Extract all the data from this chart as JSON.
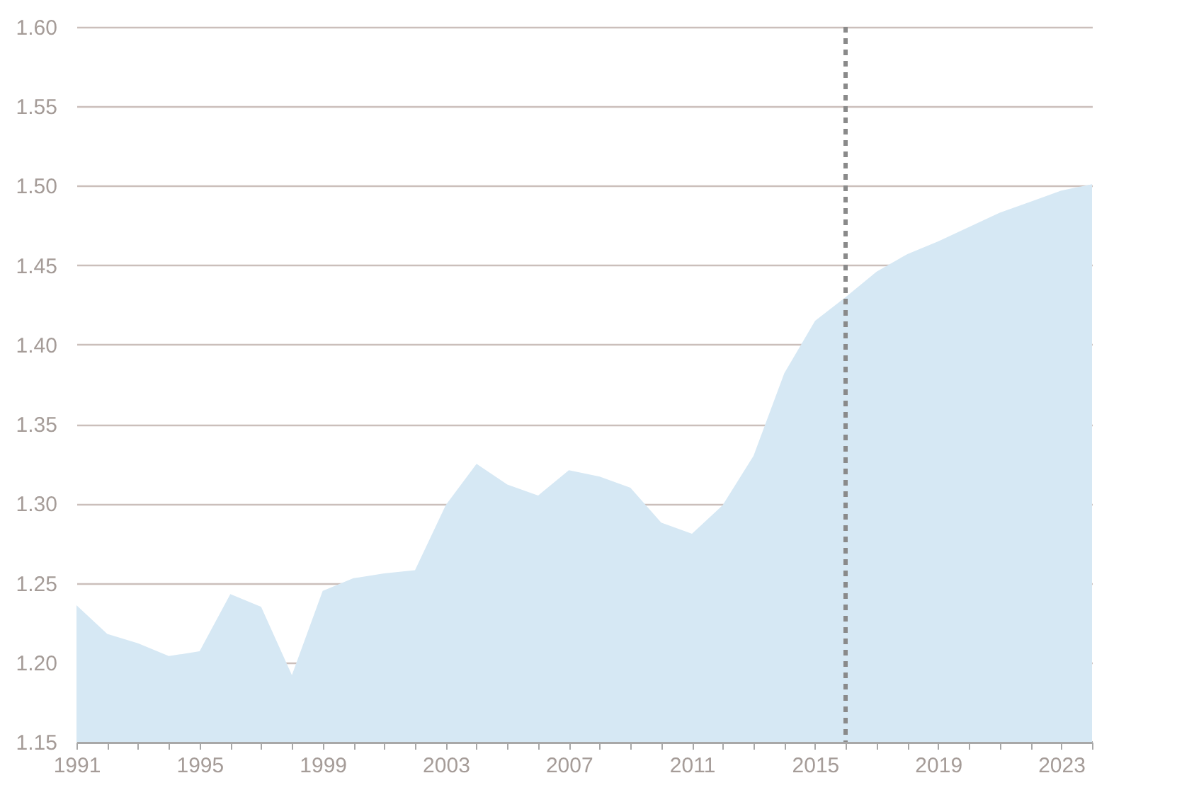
{
  "chart_data": {
    "type": "area",
    "x": [
      1991,
      1992,
      1993,
      1994,
      1995,
      1996,
      1997,
      1998,
      1999,
      2000,
      2001,
      2002,
      2003,
      2004,
      2005,
      2006,
      2007,
      2008,
      2009,
      2010,
      2011,
      2012,
      2013,
      2014,
      2015,
      2016,
      2017,
      2018,
      2019,
      2020,
      2021,
      2022,
      2023,
      2024
    ],
    "series": [
      {
        "color": "#d6e8f4",
        "values": [
          1.236,
          1.218,
          1.212,
          1.204,
          1.207,
          1.243,
          1.235,
          1.192,
          1.245,
          1.253,
          1.256,
          1.258,
          1.299,
          1.325,
          1.312,
          1.305,
          1.321,
          1.317,
          1.31,
          1.288,
          1.281,
          1.299,
          1.33,
          1.382,
          1.415,
          1.43,
          1.446,
          1.457,
          1.465,
          1.474,
          1.483,
          1.49,
          1.497,
          1.501
        ]
      }
    ],
    "xlim": [
      1991,
      2024
    ],
    "xticks": [
      1991,
      {
        "value": 1992,
        "label": null
      },
      {
        "value": 1993,
        "label": null
      },
      {
        "value": 1994,
        "label": null
      },
      1995,
      {
        "value": 1996,
        "label": null
      },
      {
        "value": 1997,
        "label": null
      },
      {
        "value": 1998,
        "label": null
      },
      1999,
      {
        "value": 2000,
        "label": null
      },
      {
        "value": 2001,
        "label": null
      },
      {
        "value": 2002,
        "label": null
      },
      2003,
      {
        "value": 2004,
        "label": null
      },
      {
        "value": 2005,
        "label": null
      },
      {
        "value": 2006,
        "label": null
      },
      2007,
      {
        "value": 2008,
        "label": null
      },
      {
        "value": 2009,
        "label": null
      },
      {
        "value": 2010,
        "label": null
      },
      2011,
      {
        "value": 2012,
        "label": null
      },
      {
        "value": 2013,
        "label": null
      },
      {
        "value": 2014,
        "label": null
      },
      2015,
      {
        "value": 2016,
        "label": null
      },
      {
        "value": 2017,
        "label": null
      },
      {
        "value": 2018,
        "label": null
      },
      2019,
      {
        "value": 2020,
        "label": null
      },
      {
        "value": 2021,
        "label": null
      },
      {
        "value": 2022,
        "label": null
      },
      2023,
      {
        "value": 2024,
        "label": null
      }
    ],
    "ylim": [
      1.15,
      1.6
    ],
    "yticks": [
      1.15,
      {
        "value": 1.2,
        "label": "1.20"
      },
      1.25,
      {
        "value": 1.3,
        "label": "1.30"
      },
      1.35,
      {
        "value": 1.4,
        "label": "1.40"
      },
      1.45,
      {
        "value": 1.5,
        "label": "1.50"
      },
      1.55,
      {
        "value": 1.6,
        "label": "1.60"
      }
    ],
    "grid": "y",
    "ref_lines": [
      {
        "axis": "x",
        "value": 2016,
        "color": "#8a8a8a",
        "line_style": "dashed"
      }
    ]
  }
}
